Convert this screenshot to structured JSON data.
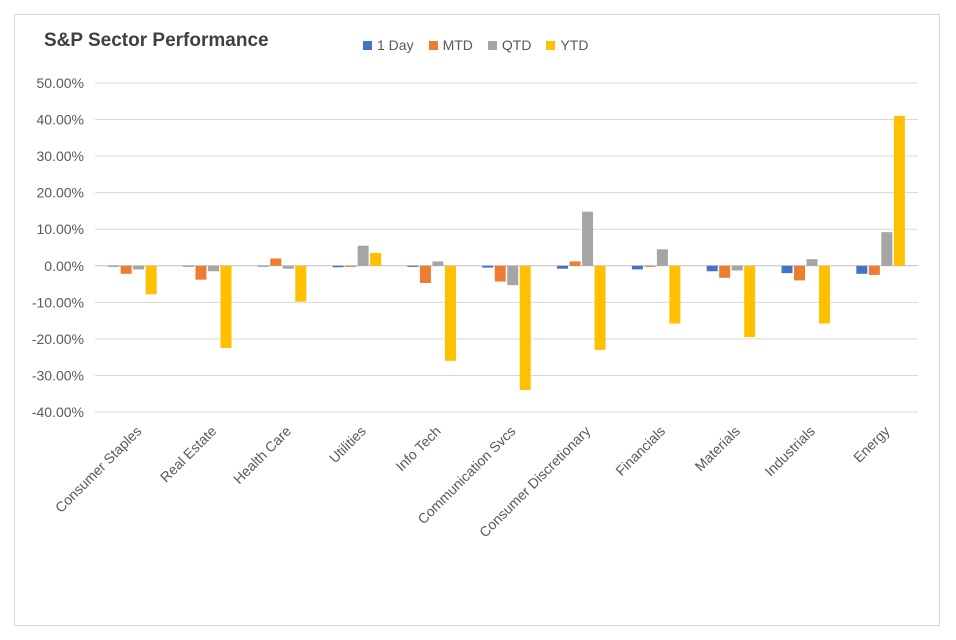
{
  "chart_data": {
    "type": "bar",
    "title": "S&P Sector Performance",
    "xlabel": "",
    "ylabel": "",
    "ylim": [
      -0.4,
      0.5
    ],
    "yticks": [
      0.5,
      0.4,
      0.3,
      0.2,
      0.1,
      0.0,
      -0.1,
      -0.2,
      -0.3,
      -0.4
    ],
    "ytick_labels": [
      "50.00%",
      "40.00%",
      "30.00%",
      "20.00%",
      "10.00%",
      "0.00%",
      "-10.00%",
      "-20.00%",
      "-30.00%",
      "-40.00%"
    ],
    "grid": true,
    "legend_position": "top",
    "categories": [
      "Consumer Staples",
      "Real Estate",
      "Health Care",
      "Utilities",
      "Info Tech",
      "Communication Svcs",
      "Consumer Discretionary",
      "Financials",
      "Materials",
      "Industrials",
      "Energy"
    ],
    "series": [
      {
        "name": "1 Day",
        "color": "#4472c4",
        "values": [
          -0.001,
          -0.002,
          -0.002,
          -0.004,
          -0.003,
          -0.005,
          -0.008,
          -0.01,
          -0.015,
          -0.02,
          -0.022
        ]
      },
      {
        "name": "MTD",
        "color": "#ed7d31",
        "values": [
          -0.022,
          -0.038,
          0.02,
          -0.003,
          -0.047,
          -0.043,
          0.012,
          -0.003,
          -0.033,
          -0.04,
          -0.025
        ]
      },
      {
        "name": "QTD",
        "color": "#a5a5a5",
        "values": [
          -0.01,
          -0.015,
          -0.008,
          0.055,
          0.012,
          -0.053,
          0.148,
          0.045,
          -0.013,
          0.018,
          0.092
        ]
      },
      {
        "name": "YTD",
        "color": "#ffc000",
        "values": [
          -0.078,
          -0.225,
          -0.098,
          0.035,
          -0.26,
          -0.34,
          -0.23,
          -0.158,
          -0.195,
          -0.158,
          0.41
        ]
      }
    ]
  }
}
